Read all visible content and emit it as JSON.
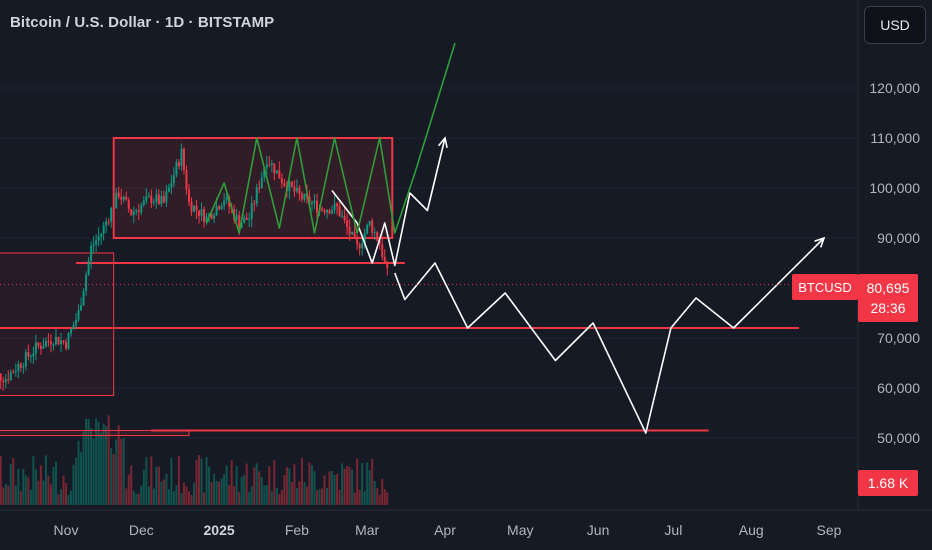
{
  "header": {
    "title": "Bitcoin / U.S. Dollar · 1D · BITSTAMP"
  },
  "toolbar": {
    "currency_label": "USD"
  },
  "price_axis": {
    "ticks": [
      "120,000",
      "110,000",
      "100,000",
      "90,000",
      "70,000",
      "60,000",
      "50,000"
    ]
  },
  "time_axis": {
    "ticks": [
      {
        "label": "Nov",
        "bold": false
      },
      {
        "label": "Dec",
        "bold": false
      },
      {
        "label": "2025",
        "bold": true
      },
      {
        "label": "Feb",
        "bold": false
      },
      {
        "label": "Mar",
        "bold": false
      },
      {
        "label": "Apr",
        "bold": false
      },
      {
        "label": "May",
        "bold": false
      },
      {
        "label": "Jun",
        "bold": false
      },
      {
        "label": "Jul",
        "bold": false
      },
      {
        "label": "Aug",
        "bold": false
      },
      {
        "label": "Sep",
        "bold": false
      }
    ]
  },
  "last_price": {
    "symbol": "BTCUSD",
    "price": "80,695",
    "countdown": "28:36"
  },
  "volume": {
    "value": "1.68 K"
  },
  "colors": {
    "background": "#161a25",
    "up": "#089981",
    "down": "#f23645",
    "zone": "#f23645",
    "projection_white": "#ffffff",
    "projection_green": "#2e9e3a"
  },
  "chart_data": {
    "type": "candlestick",
    "title": "Bitcoin / U.S. Dollar · 1D · BITSTAMP",
    "x_axis": {
      "ticks": [
        "Nov",
        "Dec",
        "2025",
        "Feb",
        "Mar",
        "Apr",
        "May",
        "Jun",
        "Jul",
        "Aug",
        "Sep"
      ]
    },
    "y_axis": {
      "ticks": [
        50000,
        60000,
        70000,
        90000,
        100000,
        110000,
        120000
      ],
      "range": [
        42000,
        128000
      ]
    },
    "price_path": [
      {
        "date": "2024-10-01",
        "close": 63000
      },
      {
        "date": "2024-10-08",
        "close": 62000
      },
      {
        "date": "2024-10-14",
        "close": 65000
      },
      {
        "date": "2024-10-20",
        "close": 68000
      },
      {
        "date": "2024-10-27",
        "close": 70000
      },
      {
        "date": "2024-11-01",
        "close": 69000
      },
      {
        "date": "2024-11-06",
        "close": 75000
      },
      {
        "date": "2024-11-11",
        "close": 88000
      },
      {
        "date": "2024-11-15",
        "close": 91000
      },
      {
        "date": "2024-11-22",
        "close": 99000
      },
      {
        "date": "2024-11-27",
        "close": 95000
      },
      {
        "date": "2024-12-05",
        "close": 98000
      },
      {
        "date": "2024-12-10",
        "close": 97000
      },
      {
        "date": "2024-12-17",
        "close": 107000
      },
      {
        "date": "2024-12-20",
        "close": 97000
      },
      {
        "date": "2024-12-27",
        "close": 94000
      },
      {
        "date": "2025-01-03",
        "close": 98000
      },
      {
        "date": "2025-01-09",
        "close": 93000
      },
      {
        "date": "2025-01-13",
        "close": 94000
      },
      {
        "date": "2025-01-20",
        "close": 106000
      },
      {
        "date": "2025-01-27",
        "close": 101000
      },
      {
        "date": "2025-02-03",
        "close": 98000
      },
      {
        "date": "2025-02-10",
        "close": 96000
      },
      {
        "date": "2025-02-17",
        "close": 96000
      },
      {
        "date": "2025-02-25",
        "close": 88000
      },
      {
        "date": "2025-03-02",
        "close": 93000
      },
      {
        "date": "2025-03-06",
        "close": 89000
      },
      {
        "date": "2025-03-10",
        "close": 80700
      }
    ],
    "last_close": 80695,
    "zones": [
      {
        "type": "range",
        "from": {
          "date": "2024-11-20",
          "price": 110000
        },
        "to": {
          "date": "2025-03-11",
          "price": 90000
        }
      },
      {
        "type": "range",
        "from": {
          "date": "2024-09-01",
          "price": 87000
        },
        "to": {
          "date": "2024-11-20",
          "price": 58500
        }
      },
      {
        "type": "range",
        "from": {
          "date": "2024-09-01",
          "price": 51500
        },
        "to": {
          "date": "2024-12-20",
          "price": 50500
        }
      }
    ],
    "horizontal_levels": [
      {
        "price": 85000,
        "from": "2024-11-05",
        "to": "2025-03-16"
      },
      {
        "price": 72000,
        "from": "2024-09-01",
        "to": "2025-08-20"
      },
      {
        "price": 51500,
        "from": "2024-12-05",
        "to": "2025-07-15"
      }
    ],
    "projections": [
      {
        "name": "",
        "color": "white",
        "points": [
          {
            "date": "2025-02-15",
            "price": 99500
          },
          {
            "date": "2025-02-25",
            "price": 93000
          },
          {
            "date": "2025-03-03",
            "price": 85000
          },
          {
            "date": "2025-03-08",
            "price": 93000
          },
          {
            "date": "2025-03-12",
            "price": 84500
          },
          {
            "date": "2025-03-18",
            "price": 99000
          },
          {
            "date": "2025-03-25",
            "price": 95500
          },
          {
            "date": "2025-04-01",
            "price": 110000
          }
        ]
      },
      {
        "name": "",
        "color": "white",
        "points": [
          {
            "date": "2025-03-12",
            "price": 83000
          },
          {
            "date": "2025-03-16",
            "price": 77700
          },
          {
            "date": "2025-03-28",
            "price": 85000
          },
          {
            "date": "2025-04-10",
            "price": 72000
          },
          {
            "date": "2025-04-25",
            "price": 79000
          },
          {
            "date": "2025-05-15",
            "price": 65500
          },
          {
            "date": "2025-05-30",
            "price": 73000
          },
          {
            "date": "2025-06-20",
            "price": 51000
          },
          {
            "date": "2025-06-30",
            "price": 72000
          },
          {
            "date": "2025-07-10",
            "price": 78000
          },
          {
            "date": "2025-07-25",
            "price": 72000
          },
          {
            "date": "2025-08-30",
            "price": 90000
          }
        ]
      },
      {
        "name": "",
        "color": "green",
        "points": [
          {
            "date": "2024-12-27",
            "price": 93000
          },
          {
            "date": "2025-01-03",
            "price": 101000
          },
          {
            "date": "2025-01-09",
            "price": 91000
          },
          {
            "date": "2025-01-16",
            "price": 110000
          },
          {
            "date": "2025-01-25",
            "price": 92000
          },
          {
            "date": "2025-02-01",
            "price": 110000
          },
          {
            "date": "2025-02-08",
            "price": 91000
          },
          {
            "date": "2025-02-16",
            "price": 110000
          },
          {
            "date": "2025-02-25",
            "price": 91000
          },
          {
            "date": "2025-03-06",
            "price": 110000
          },
          {
            "date": "2025-03-12",
            "price": 91000
          },
          {
            "date": "2025-03-20",
            "price": 103000
          },
          {
            "date": "2025-04-05",
            "price": 129000
          }
        ]
      }
    ],
    "current_volume": "1.68 K"
  }
}
